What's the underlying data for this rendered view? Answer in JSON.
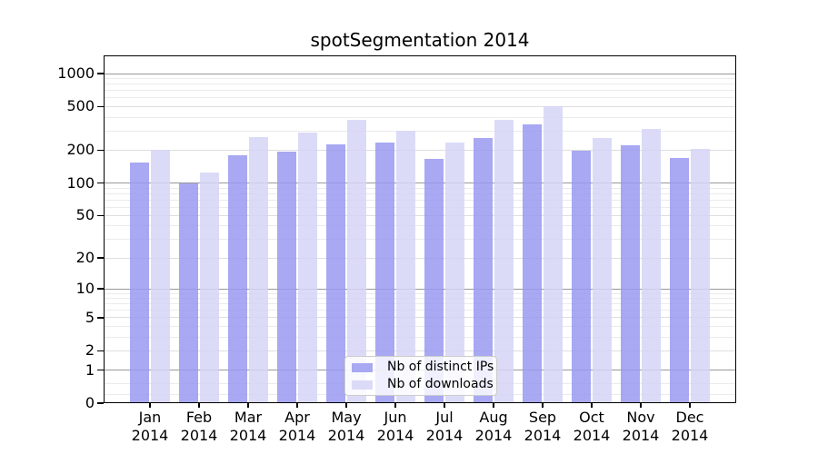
{
  "title": "spotSegmentation 2014",
  "chart_data": {
    "type": "bar",
    "title": "spotSegmentation 2014",
    "categories": [
      "Jan 2014",
      "Feb 2014",
      "Mar 2014",
      "Apr 2014",
      "May 2014",
      "Jun 2014",
      "Jul 2014",
      "Aug 2014",
      "Sep 2014",
      "Oct 2014",
      "Nov 2014",
      "Dec 2014"
    ],
    "series": [
      {
        "name": "Nb of distinct IPs",
        "color": "#a8a8f3",
        "fill": "rgba(153,153,241,0.85)",
        "values": [
          155,
          100,
          180,
          194,
          226,
          236,
          166,
          256,
          344,
          196,
          220,
          170
        ]
      },
      {
        "name": "Nb of downloads",
        "color": "#dbdbf8",
        "fill": "rgba(213,213,247,0.85)",
        "values": [
          200,
          126,
          265,
          291,
          381,
          303,
          233,
          379,
          504,
          258,
          312,
          207
        ]
      }
    ],
    "yscale": "log1p",
    "yticks": [
      0,
      1,
      2,
      5,
      10,
      20,
      50,
      100,
      200,
      500,
      1000
    ],
    "ylim": [
      0,
      1000
    ],
    "xlabel": "",
    "ylabel": "",
    "grid": true,
    "legend_position": "lower-center-inside",
    "grid_major_color": "#999999",
    "grid_mid_color": "#dedede",
    "grid_minor_color": "#ebebeb"
  }
}
